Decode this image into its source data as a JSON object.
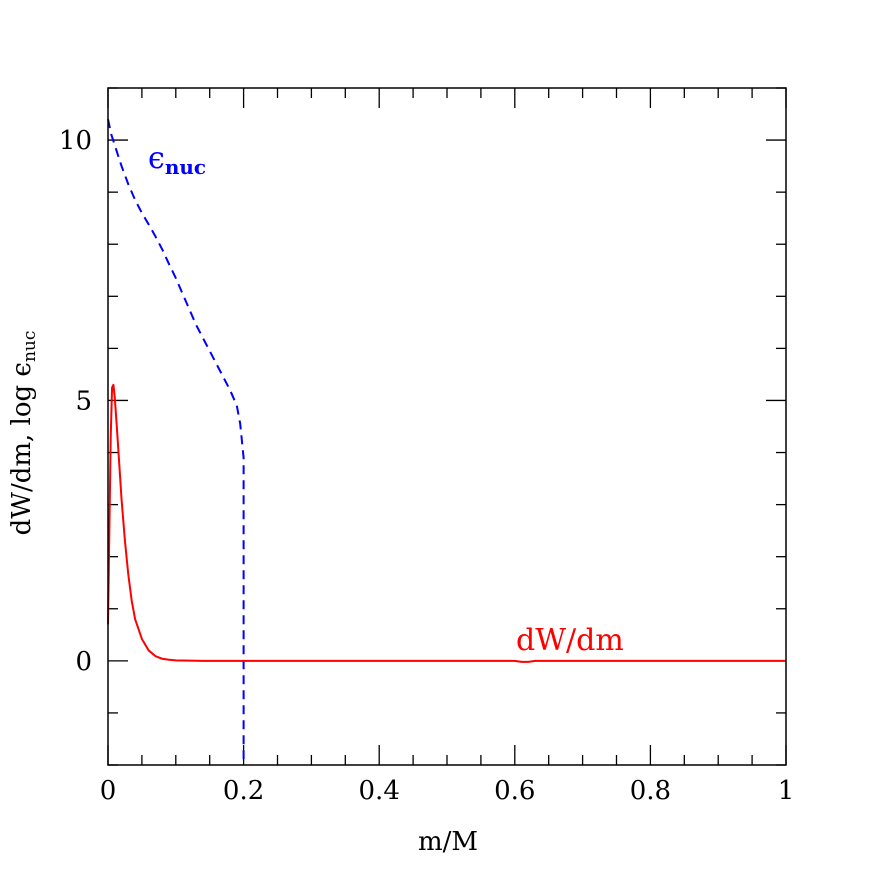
{
  "chart_data": {
    "type": "line",
    "xlabel": "m/M",
    "ylabel": "dW/dm, log ϵ",
    "ylabel_sub": "nuc",
    "xlim": [
      0,
      1
    ],
    "ylim": [
      -2,
      11
    ],
    "x_ticks": [
      0,
      0.2,
      0.4,
      0.6,
      0.8,
      1
    ],
    "x_tick_labels": [
      "0",
      "0.2",
      "0.4",
      "0.6",
      "0.8",
      "1"
    ],
    "y_ticks": [
      0,
      5,
      10
    ],
    "y_tick_labels": [
      "0",
      "5",
      "10"
    ],
    "x_minor_step": 0.05,
    "y_minor_step": 1,
    "grid": false,
    "series": [
      {
        "name": "ϵ",
        "name_sub": "nuc",
        "color": "#0000ff",
        "style": "dashed",
        "x": [
          0,
          0.005,
          0.01,
          0.02,
          0.03,
          0.04,
          0.05,
          0.06,
          0.07,
          0.08,
          0.09,
          0.1,
          0.11,
          0.12,
          0.13,
          0.14,
          0.15,
          0.16,
          0.17,
          0.18,
          0.19,
          0.195,
          0.2,
          0.2,
          0.2
        ],
        "y": [
          10.4,
          10.1,
          9.9,
          9.5,
          9.15,
          8.85,
          8.6,
          8.38,
          8.15,
          7.9,
          7.62,
          7.35,
          7.05,
          6.75,
          6.45,
          6.2,
          5.95,
          5.7,
          5.45,
          5.2,
          4.9,
          4.55,
          3.9,
          0,
          -2
        ]
      },
      {
        "name": "dW/dm",
        "color": "#ff0000",
        "style": "solid",
        "x": [
          0,
          0.002,
          0.004,
          0.006,
          0.008,
          0.01,
          0.013,
          0.016,
          0.02,
          0.025,
          0.03,
          0.035,
          0.04,
          0.05,
          0.06,
          0.07,
          0.08,
          0.09,
          0.1,
          0.12,
          0.14,
          0.2,
          0.3,
          0.4,
          0.5,
          0.6,
          0.61,
          0.62,
          0.63,
          0.7,
          0.8,
          0.9,
          1.0
        ],
        "y": [
          0.7,
          2.5,
          4.3,
          5.25,
          5.3,
          5.05,
          4.5,
          3.9,
          3.1,
          2.3,
          1.65,
          1.15,
          0.8,
          0.42,
          0.2,
          0.09,
          0.04,
          0.02,
          0.01,
          0.005,
          0.0,
          0.0,
          0.0,
          0.0,
          0.0,
          0.0,
          -0.02,
          -0.02,
          0.0,
          0.0,
          0.0,
          0.0,
          0.0
        ]
      }
    ]
  }
}
